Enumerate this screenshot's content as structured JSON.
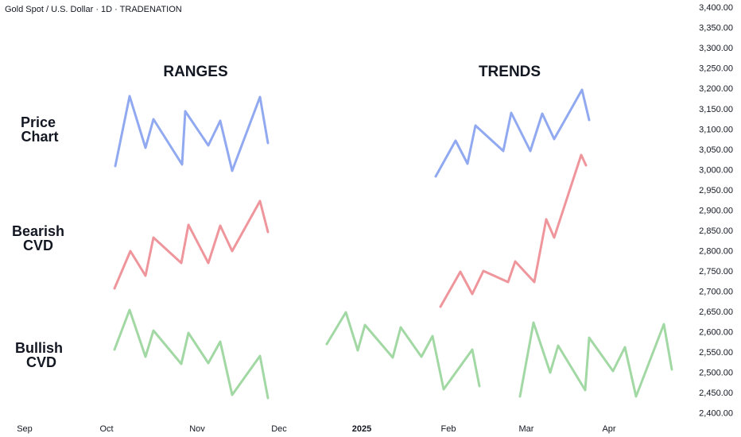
{
  "chart_data": {
    "type": "line",
    "title": "Gold Spot / U.S. Dollar · 1D · TRADENATION",
    "annotations": [
      "RANGES",
      "TRENDS",
      "Price",
      "Chart",
      "Bearish",
      "CVD",
      "Bullish",
      "CVD"
    ],
    "categories": [
      "Sep",
      "Oct",
      "Nov",
      "Dec",
      "2025",
      "Feb",
      "Mar",
      "Apr"
    ],
    "ylim": [
      2382,
      3420
    ],
    "yticks": [
      {
        "value": 2400,
        "label": "2,400.00"
      },
      {
        "value": 2450,
        "label": "2,450.00"
      },
      {
        "value": 2500,
        "label": "2,500.00"
      },
      {
        "value": 2550,
        "label": "2,550.00"
      },
      {
        "value": 2600,
        "label": "2,600.00"
      },
      {
        "value": 2650,
        "label": "2,650.00"
      },
      {
        "value": 2700,
        "label": "2,700.00"
      },
      {
        "value": 2750,
        "label": "2,750.00"
      },
      {
        "value": 2800,
        "label": "2,800.00"
      },
      {
        "value": 2850,
        "label": "2,850.00"
      },
      {
        "value": 2900,
        "label": "2,900.00"
      },
      {
        "value": 2950,
        "label": "2,950.00"
      },
      {
        "value": 3000,
        "label": "3,000.00"
      },
      {
        "value": 3050,
        "label": "3,050.00"
      },
      {
        "value": 3100,
        "label": "3,100.00"
      },
      {
        "value": 3150,
        "label": "3,150.00"
      },
      {
        "value": 3200,
        "label": "3,200.00"
      },
      {
        "value": 3250,
        "label": "3,250.00"
      },
      {
        "value": 3300,
        "label": "3,300.00"
      },
      {
        "value": 3350,
        "label": "3,350.00"
      },
      {
        "value": 3400,
        "label": "3,400.00"
      }
    ]
  }
}
